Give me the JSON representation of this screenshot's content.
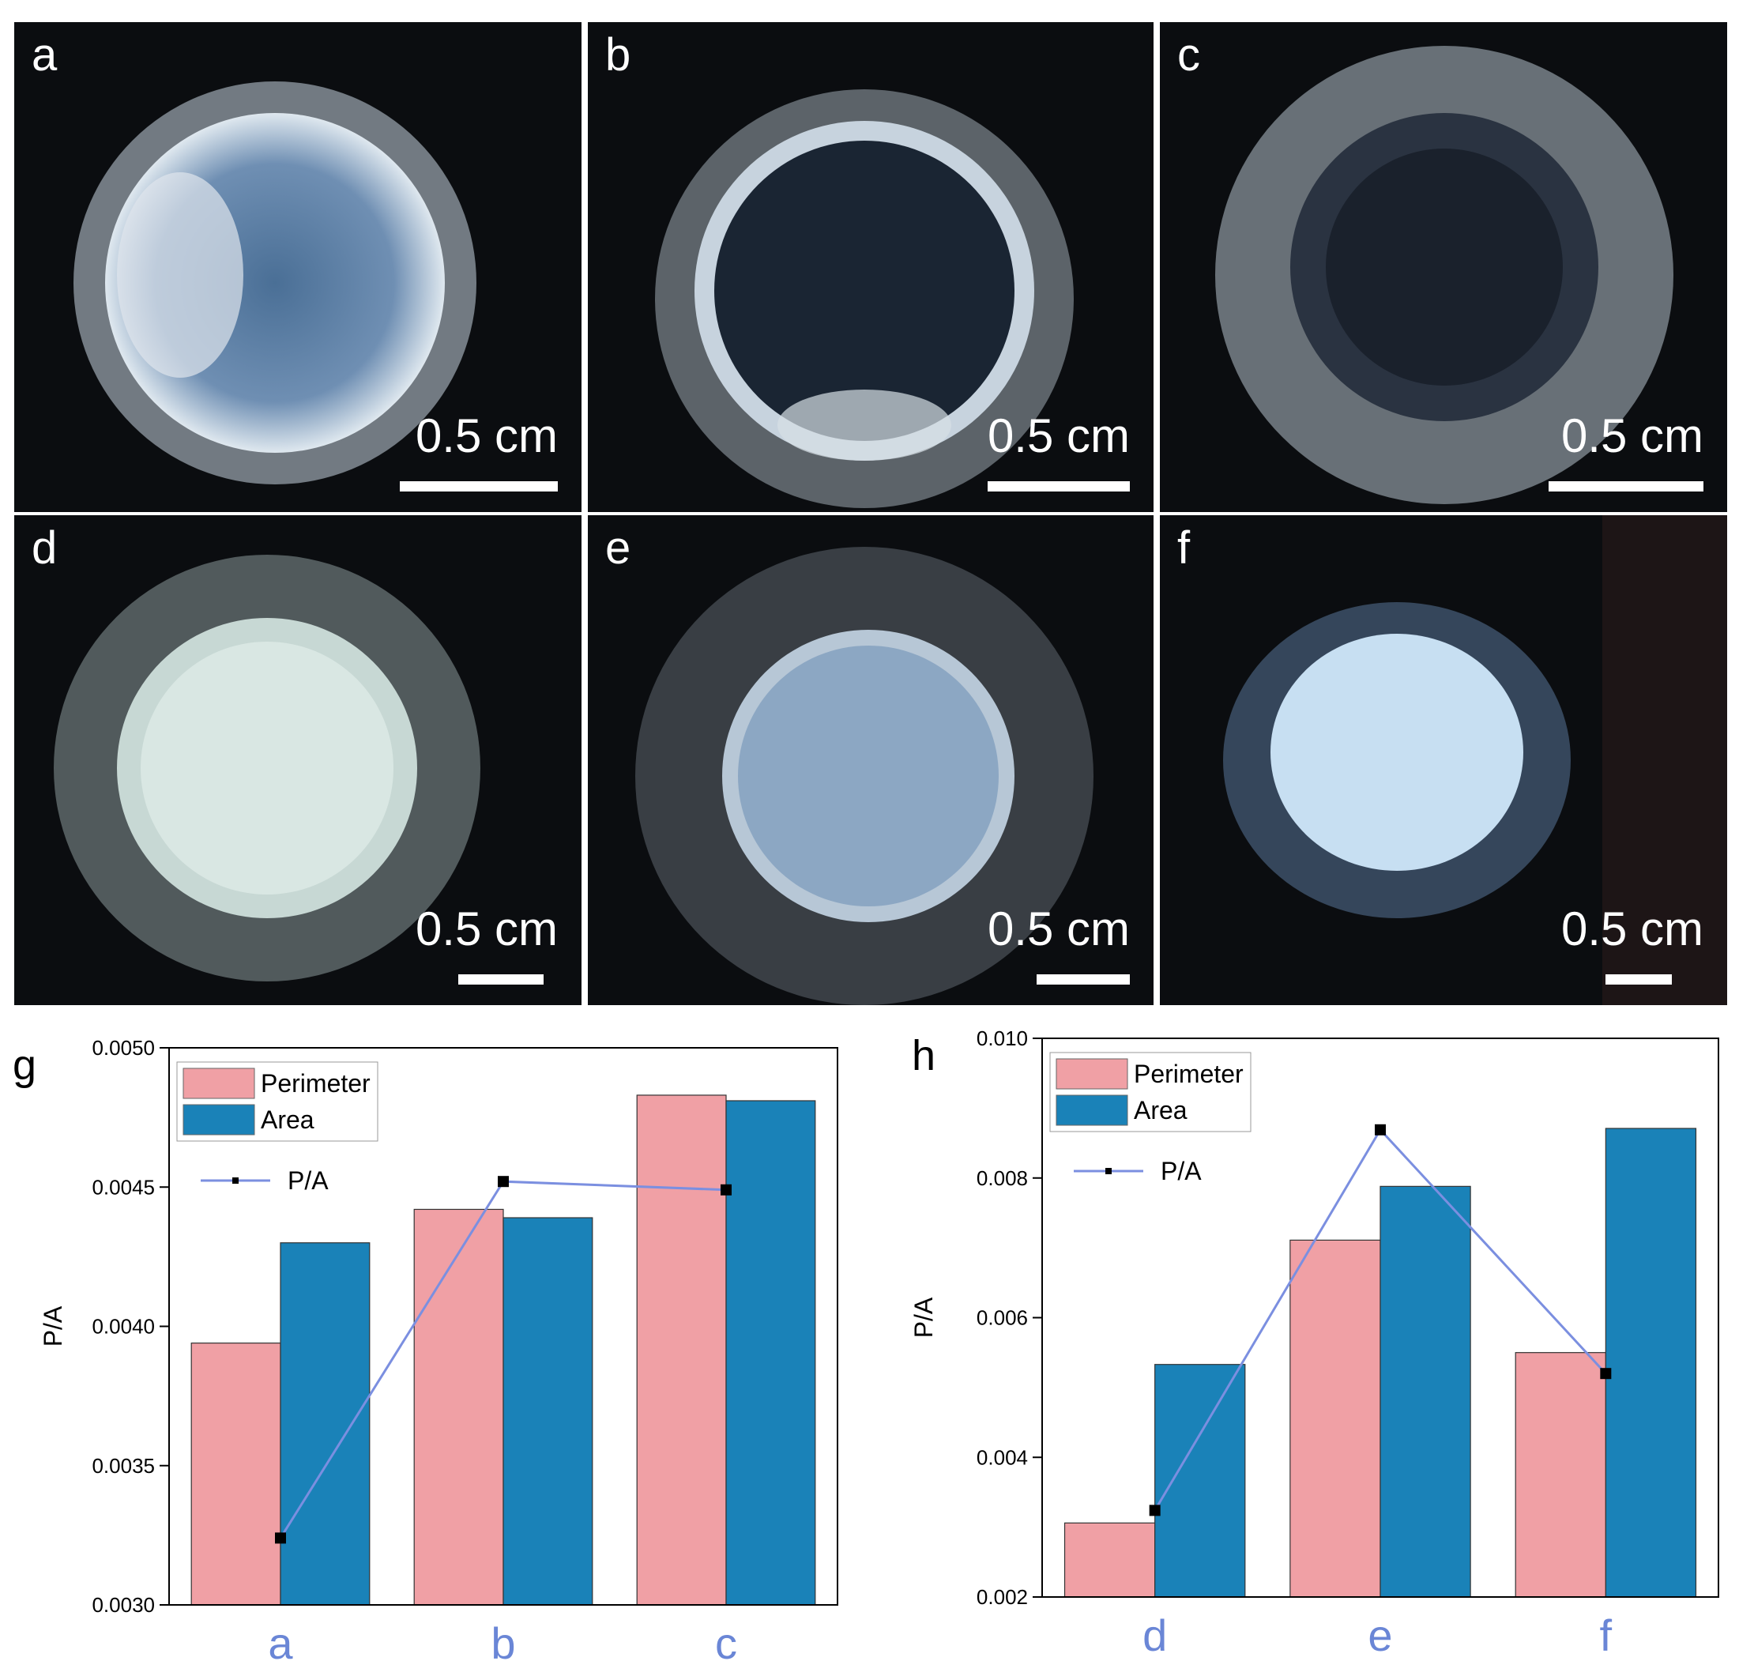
{
  "photos": [
    {
      "letter": "a",
      "scale": "0.5 cm"
    },
    {
      "letter": "b",
      "scale": "0.5 cm"
    },
    {
      "letter": "c",
      "scale": "0.5 cm"
    },
    {
      "letter": "d",
      "scale": "0.5 cm"
    },
    {
      "letter": "e",
      "scale": "0.5 cm"
    },
    {
      "letter": "f",
      "scale": "0.5 cm"
    }
  ],
  "colors": {
    "perimeter": "#f0a0a5",
    "area": "#1a82b8",
    "pa_line": "#7b8fe0",
    "pa_marker": "#000000",
    "category_label": "#6a86d6"
  },
  "chart_data": [
    {
      "panel": "g",
      "type": "bar",
      "categories": [
        "a",
        "b",
        "c"
      ],
      "series": [
        {
          "name": "Perimeter",
          "type": "bar",
          "values": [
            0.00394,
            0.00442,
            0.00483
          ]
        },
        {
          "name": "Area",
          "type": "bar",
          "values": [
            0.0043,
            0.00439,
            0.00481
          ]
        },
        {
          "name": "P/A",
          "type": "line",
          "values": [
            0.00324,
            0.00452,
            0.00449
          ]
        }
      ],
      "ylabel": "P/A",
      "ylim": [
        0.003,
        0.005
      ],
      "yticks": [
        "0.0030",
        "0.0035",
        "0.0040",
        "0.0045",
        "0.0050"
      ],
      "legend": "top-left"
    },
    {
      "panel": "h",
      "type": "bar",
      "categories": [
        "d",
        "e",
        "f"
      ],
      "series": [
        {
          "name": "Perimeter",
          "type": "bar",
          "values": [
            0.00306,
            0.00711,
            0.0055
          ]
        },
        {
          "name": "Area",
          "type": "bar",
          "values": [
            0.00533,
            0.00788,
            0.00871
          ]
        },
        {
          "name": "P/A",
          "type": "line",
          "values": [
            0.00324,
            0.00869,
            0.0052
          ]
        }
      ],
      "ylabel": "P/A",
      "ylim": [
        0.002,
        0.01
      ],
      "yticks": [
        "0.002",
        "0.004",
        "0.006",
        "0.008",
        "0.010"
      ],
      "legend": "top-left"
    }
  ]
}
